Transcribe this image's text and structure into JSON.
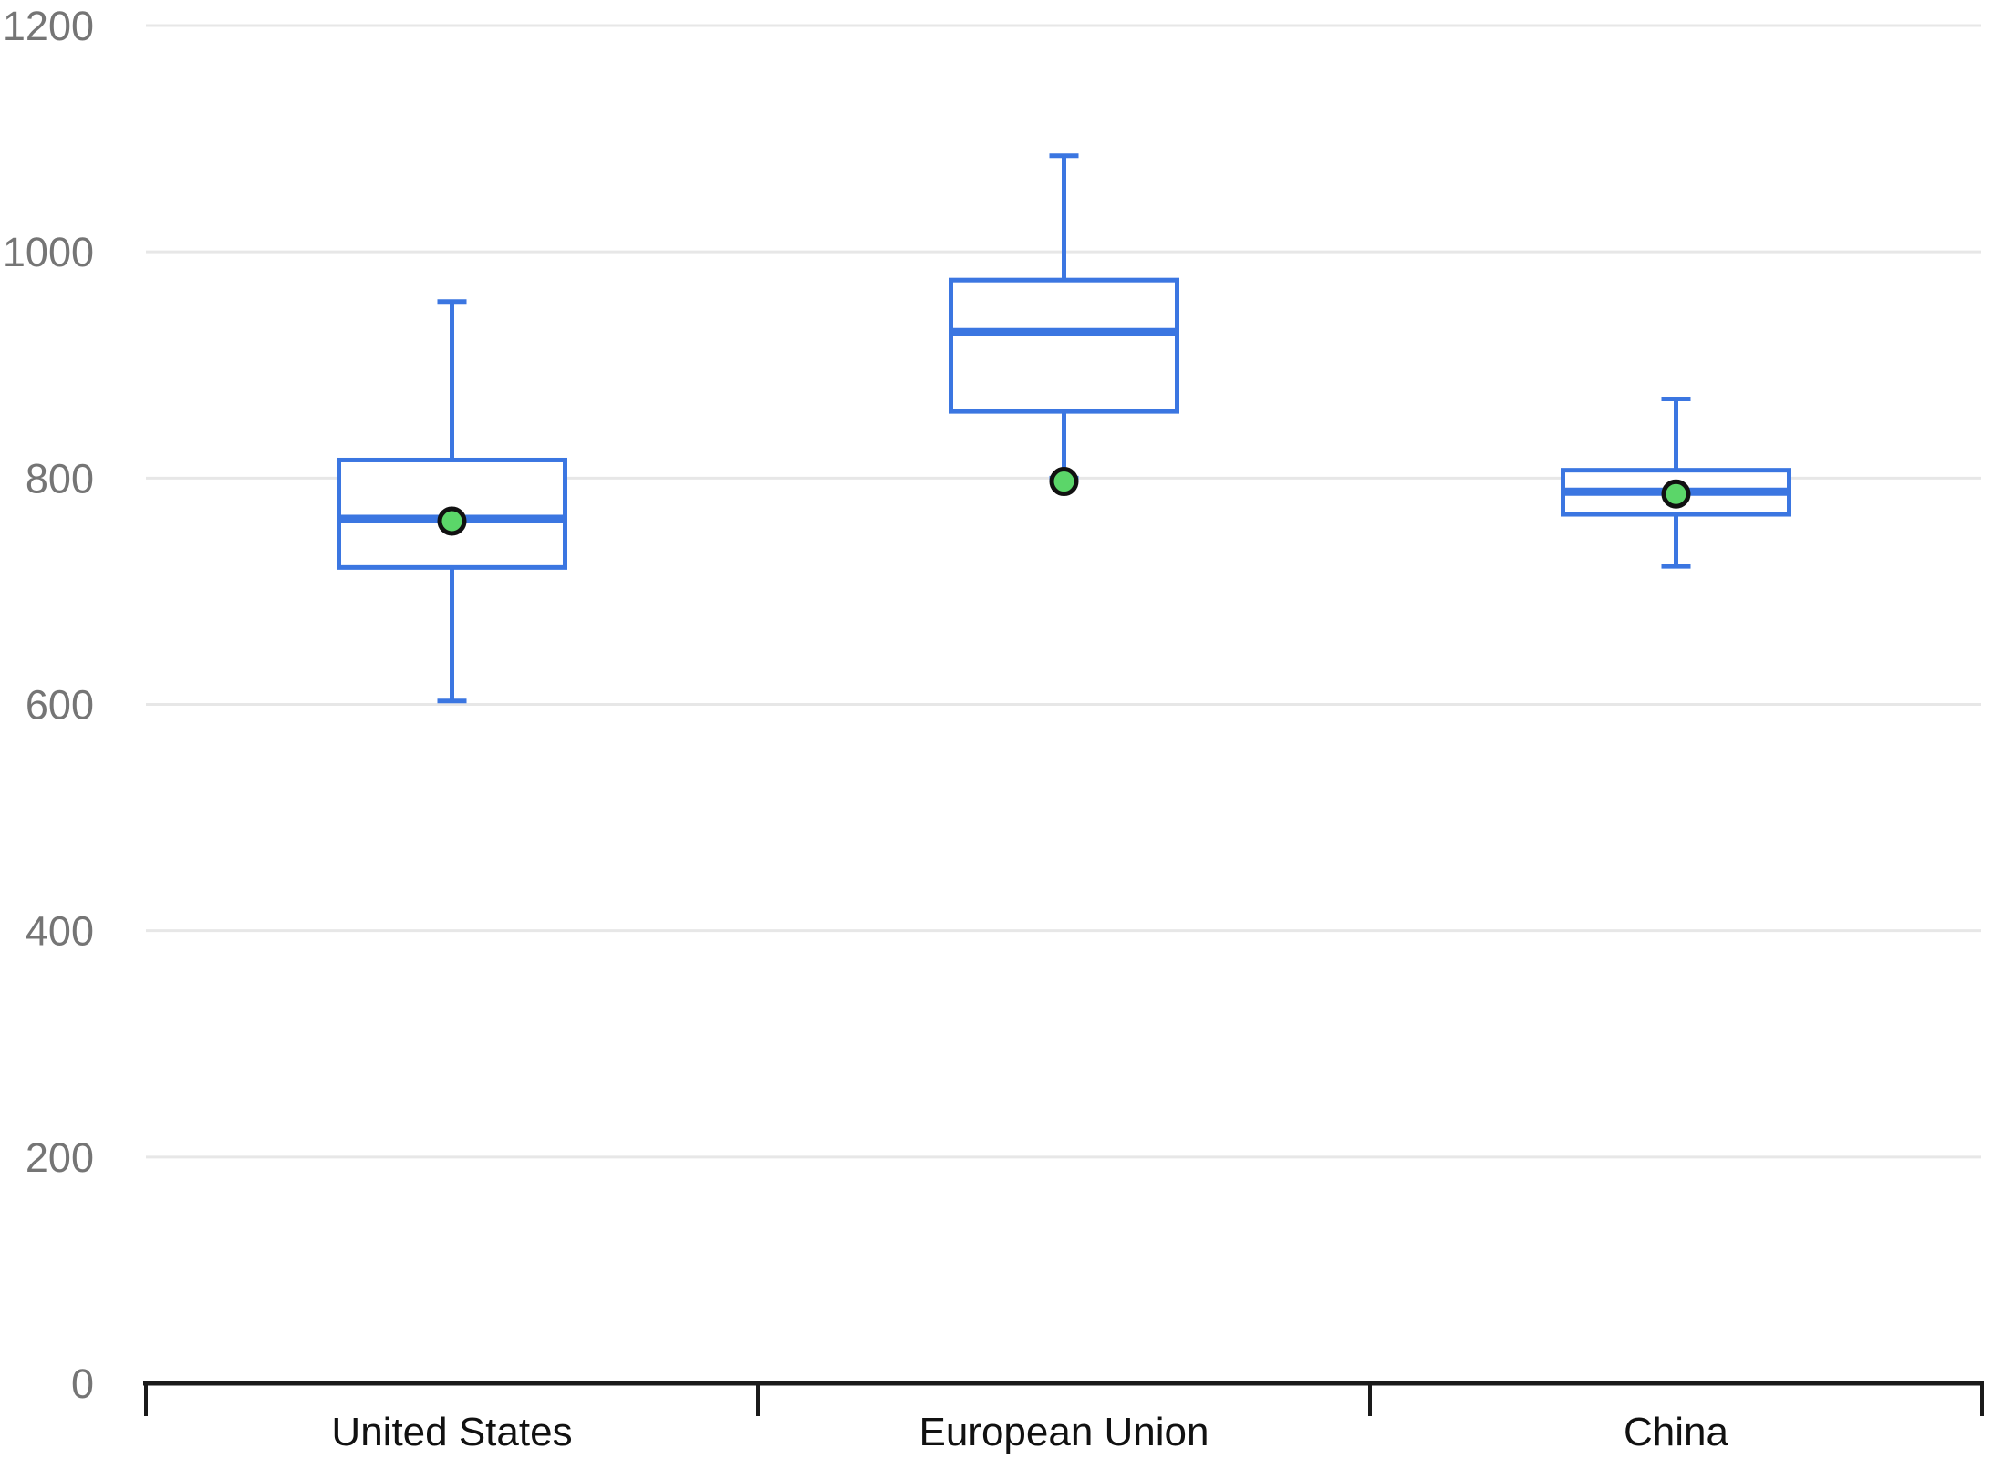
{
  "chart_data": {
    "type": "boxplot",
    "title": "",
    "xlabel": "",
    "ylabel": "",
    "categories": [
      "United States",
      "European Union",
      "China"
    ],
    "ylim": [
      0,
      1200
    ],
    "yticks": [
      0,
      200,
      400,
      600,
      800,
      1000,
      1200
    ],
    "grid": true,
    "legend_position": "none",
    "boxes": [
      {
        "category": "United States",
        "min": 603,
        "q1": 721,
        "median": 764,
        "q3": 816,
        "max": 956,
        "mean_marker": 762
      },
      {
        "category": "European Union",
        "min": 800,
        "q1": 859,
        "median": 929,
        "q3": 975,
        "max": 1085,
        "mean_marker": 797
      },
      {
        "category": "China",
        "min": 722,
        "q1": 768,
        "median": 788,
        "q3": 807,
        "max": 870,
        "mean_marker": 786
      }
    ],
    "colors": {
      "background": "#ffffff",
      "box_stroke": "#3b76e1",
      "box_fill": "#ffffff",
      "median_stroke": "#3b76e1",
      "whisker_stroke": "#3b76e1",
      "mean_marker_fill": "#5bd669",
      "mean_marker_stroke": "#111111",
      "gridline": "#e7e7e7",
      "axis_line": "#1a1a1a",
      "y_tick_label_color": "#757575",
      "x_label_color": "#111111"
    }
  }
}
